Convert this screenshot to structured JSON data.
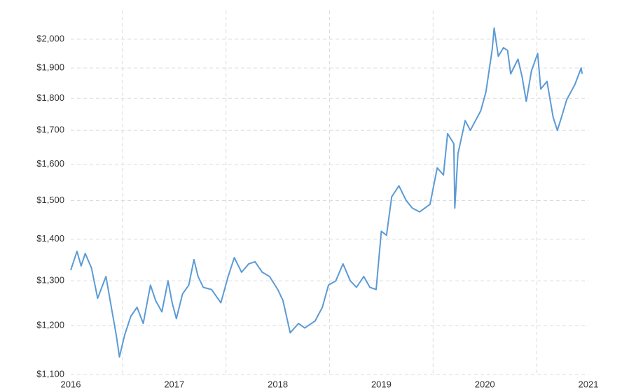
{
  "chart_data": {
    "type": "line",
    "ylog": true,
    "grid": true,
    "x": [
      2016.0,
      2016.06,
      2016.1,
      2016.14,
      2016.2,
      2016.26,
      2016.3,
      2016.34,
      2016.4,
      2016.44,
      2016.47,
      2016.52,
      2016.58,
      2016.64,
      2016.7,
      2016.77,
      2016.82,
      2016.88,
      2016.94,
      2016.98,
      2017.02,
      2017.08,
      2017.14,
      2017.19,
      2017.23,
      2017.28,
      2017.36,
      2017.45,
      2017.52,
      2017.58,
      2017.65,
      2017.72,
      2017.78,
      2017.85,
      2017.92,
      2018.0,
      2018.05,
      2018.12,
      2018.2,
      2018.26,
      2018.36,
      2018.43,
      2018.49,
      2018.56,
      2018.63,
      2018.7,
      2018.76,
      2018.83,
      2018.89,
      2018.95,
      2019.0,
      2019.05,
      2019.1,
      2019.17,
      2019.24,
      2019.3,
      2019.37,
      2019.47,
      2019.54,
      2019.6,
      2019.64,
      2019.7,
      2019.71,
      2019.74,
      2019.81,
      2019.86,
      2019.91,
      2019.96,
      2020.01,
      2020.07,
      2020.09,
      2020.13,
      2020.18,
      2020.22,
      2020.25,
      2020.32,
      2020.36,
      2020.4,
      2020.45,
      2020.51,
      2020.54,
      2020.6,
      2020.66,
      2020.7,
      2020.74,
      2020.79,
      2020.87,
      2020.93,
      2020.94
    ],
    "series": [
      {
        "color": "#5b9bd5",
        "values": [
          1325,
          1370,
          1335,
          1365,
          1330,
          1260,
          1285,
          1310,
          1230,
          1180,
          1135,
          1180,
          1220,
          1240,
          1205,
          1290,
          1255,
          1230,
          1300,
          1250,
          1215,
          1270,
          1290,
          1350,
          1310,
          1285,
          1280,
          1250,
          1310,
          1355,
          1320,
          1340,
          1345,
          1320,
          1310,
          1280,
          1255,
          1185,
          1205,
          1195,
          1210,
          1240,
          1290,
          1300,
          1340,
          1300,
          1285,
          1310,
          1285,
          1280,
          1420,
          1410,
          1510,
          1540,
          1500,
          1480,
          1470,
          1490,
          1590,
          1570,
          1690,
          1660,
          1480,
          1630,
          1730,
          1700,
          1730,
          1760,
          1820,
          1960,
          2040,
          1940,
          1970,
          1960,
          1880,
          1930,
          1870,
          1790,
          1890,
          1950,
          1830,
          1855,
          1740,
          1700,
          1740,
          1795,
          1845,
          1900,
          1880
        ]
      }
    ],
    "xlim": [
      2016,
      2021
    ],
    "xticks": [
      2016,
      2017,
      2018,
      2019,
      2020,
      2021
    ],
    "xgrid": [
      2016.5,
      2017.5,
      2018.5,
      2019.5,
      2020.5
    ],
    "ylim": [
      1100,
      2105
    ],
    "yticks": [
      {
        "value": 1100,
        "label": "$1,100"
      },
      {
        "value": 1200,
        "label": "$1,200"
      },
      {
        "value": 1300,
        "label": "$1,300"
      },
      {
        "value": 1400,
        "label": "$1,400"
      },
      {
        "value": 1500,
        "label": "$1,500"
      },
      {
        "value": 1600,
        "label": "$1,600"
      },
      {
        "value": 1700,
        "label": "$1,700"
      },
      {
        "value": 1800,
        "label": "$1,800"
      },
      {
        "value": 1900,
        "label": "$1,900"
      },
      {
        "value": 2000,
        "label": "$2,000"
      }
    ]
  }
}
